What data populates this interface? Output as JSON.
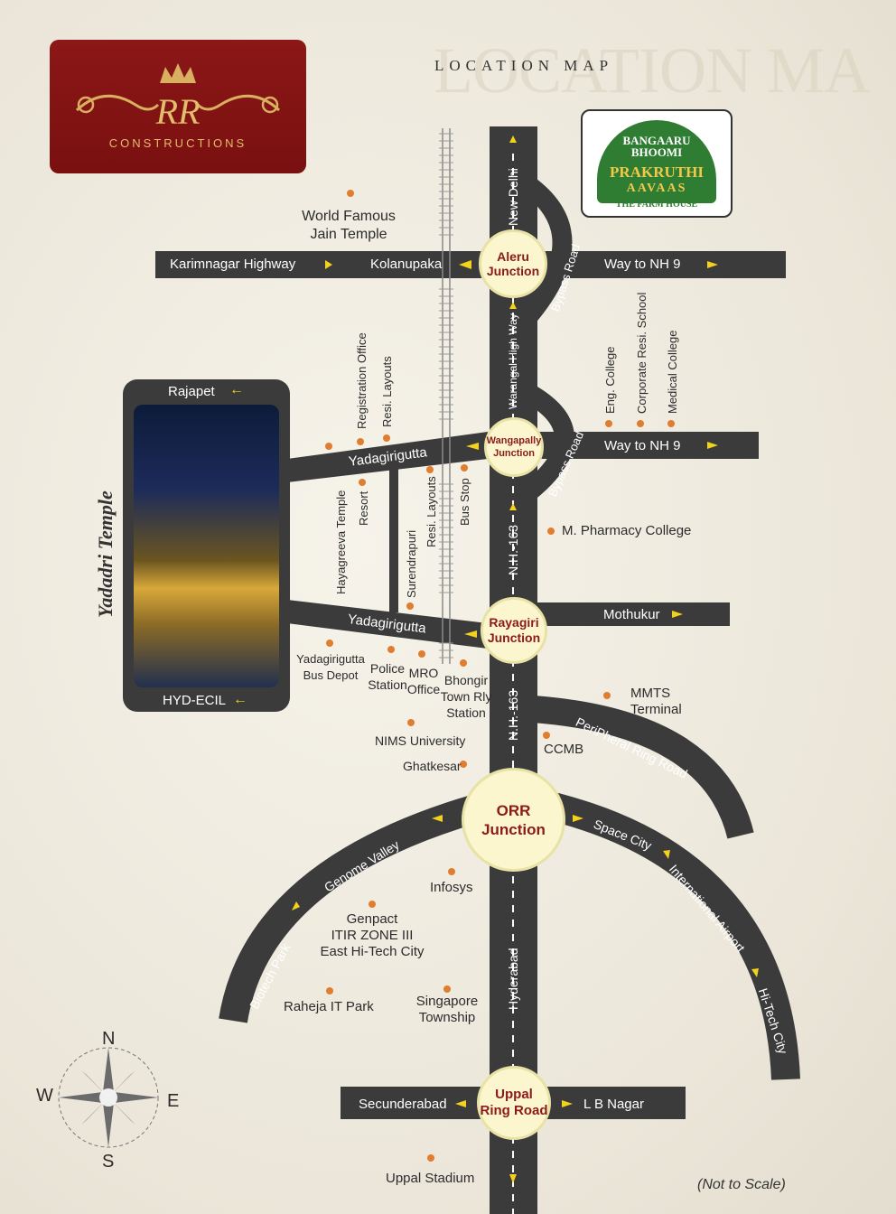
{
  "title": "LOCATION MAP",
  "title_watermark": "LOCATION MA",
  "note": "(Not to Scale)",
  "logo": {
    "monogram": "RR",
    "text": "CONSTRUCTIONS"
  },
  "brand": {
    "line1": "BANGAARU",
    "line2": "BHOOMI",
    "name": "PRAKRUTHI",
    "sub": "AAVAAS",
    "tag": "THE FARM HOUSE"
  },
  "temple": {
    "title": "Yadadri Temple",
    "top": "Rajapet",
    "bottom": "HYD-ECIL"
  },
  "roads": {
    "karimnagar": "Karimnagar Highway",
    "kolanupaka": "Kolanupaka",
    "nh9_top": "Way to NH 9",
    "nh9_mid": "Way to NH 9",
    "new_delhi": "New Delhi",
    "bypass_top": "Bypass Road",
    "bypass_mid": "Bypass Road",
    "warangal": "Warangal High Way",
    "nh163_a": "N.H.-163",
    "nh163_b": "N.H.-163",
    "yadagirigutta_a": "Yadagirigutta",
    "yadagirigutta_b": "Yadagirigutta",
    "mothukur": "Mothukur",
    "peripheral": "PeriPheral Ring Road",
    "genome": "Genome Valley",
    "biotech": "Biotech Park",
    "space_city": "Space City",
    "intl_airport": "International Airport",
    "hitech_city": "Hi-Tech City",
    "hyderabad": "Hyderabad",
    "secunderabad": "Secunderabad",
    "lb_nagar": "L B Nagar"
  },
  "junctions": {
    "aleru": [
      "Aleru",
      "Junction"
    ],
    "wangapally": [
      "Wangapally",
      "Junction"
    ],
    "rayagiri": [
      "Rayagiri",
      "Junction"
    ],
    "orr": [
      "ORR",
      "Junction"
    ],
    "uppal": [
      "Uppal",
      "Ring Road"
    ]
  },
  "places": {
    "jain_temple": [
      "World Famous",
      "Jain Temple"
    ],
    "registration_office": "Registration Office",
    "resi_layouts_a": "Resi. Layouts",
    "eng_college": "Eng. College",
    "corporate_school": "Corporate Resi. School",
    "medical_college": "Medical College",
    "hayagreeva": "Hayagreeva Temple",
    "resort": "Resort",
    "surendrapuri": "Surendrapuri",
    "resi_layouts_b": "Resi. Layouts",
    "bus_stop": "Bus Stop",
    "pharmacy": "M. Pharmacy College",
    "bus_depot": [
      "Yadagirigutta",
      "Bus Depot"
    ],
    "police": [
      "Police",
      "Station"
    ],
    "mro": [
      "MRO",
      "Office"
    ],
    "bhongir": [
      "Bhongir",
      "Town Rly",
      "Station"
    ],
    "mmts": [
      "MMTS",
      "Terminal"
    ],
    "ccmb": "CCMB",
    "nims": "NIMS University",
    "ghatkesar": "Ghatkesar",
    "infosys": "Infosys",
    "genpact": [
      "Genpact",
      "ITIR ZONE III",
      "East Hi-Tech City"
    ],
    "raheja": "Raheja IT Park",
    "singapore": [
      "Singapore",
      "Township"
    ],
    "uppal_stadium": "Uppal Stadium"
  },
  "compass": {
    "n": "N",
    "s": "S",
    "e": "E",
    "w": "W"
  },
  "colors": {
    "road": "#3b3b3b",
    "junction_fill": "#fcf6cf",
    "junction_text": "#8b1a1a",
    "arrow": "#f2d21c",
    "dot": "#e07d2f",
    "logo_bg": "#8c1717",
    "gold": "#d9b060"
  }
}
